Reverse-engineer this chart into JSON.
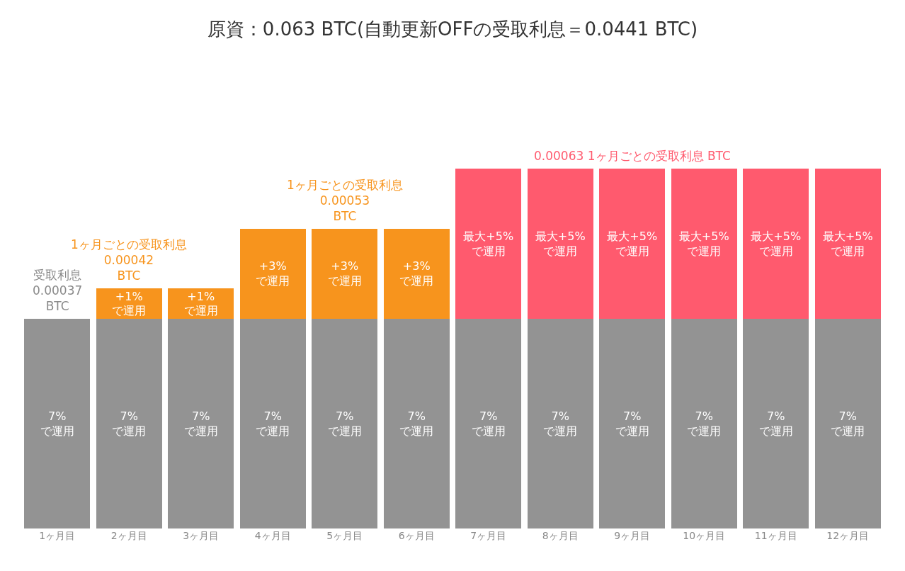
{
  "chart_data": {
    "type": "bar",
    "title": "原資：0.063 BTC(自動更新OFFの受取利息＝0.0441 BTC)",
    "categories": [
      "1ヶ月目",
      "2ヶ月目",
      "3ヶ月目",
      "4ヶ月目",
      "5ヶ月目",
      "6ヶ月目",
      "7ヶ月目",
      "8ヶ月目",
      "9ヶ月目",
      "10ヶ月目",
      "11ヶ月目",
      "12ヶ月目"
    ],
    "stacked": true,
    "legend": false,
    "tick_labels": "x",
    "series": [
      {
        "color": "#939393",
        "values": [
          7,
          7,
          7,
          7,
          7,
          7,
          7,
          7,
          7,
          7,
          7,
          7
        ],
        "value_labels": [
          "7%\nで運用",
          "7%\nで運用",
          "7%\nで運用",
          "7%\nで運用",
          "7%\nで運用",
          "7%\nで運用",
          "7%\nで運用",
          "7%\nで運用",
          "7%\nで運用",
          "7%\nで運用",
          "7%\nで運用",
          "7%\nで運用"
        ]
      },
      {
        "colors": [
          "#939393",
          "#f7941d",
          "#f7941d",
          "#f7941d",
          "#f7941d",
          "#f7941d",
          "#ff5a6e",
          "#ff5a6e",
          "#ff5a6e",
          "#ff5a6e",
          "#ff5a6e",
          "#ff5a6e"
        ],
        "values": [
          null,
          1,
          1,
          3,
          3,
          3,
          5,
          5,
          5,
          5,
          5,
          5
        ],
        "value_labels": [
          null,
          "+1%\nで運用",
          "+1%\nで運用",
          "+3%\nで運用",
          "+3%\nで運用",
          "+3%\nで運用",
          "最大+5%\nで運用",
          "最大+5%\nで運用",
          "最大+5%\nで運用",
          "最大+5%\nで運用",
          "最大+5%\nで運用",
          "最大+5%\nで運用"
        ]
      }
    ],
    "annotations": [
      {
        "text": "受取利息\n0.00037\nBTC",
        "x": "1ヶ月目",
        "y": 7
      },
      {
        "text": "1ヶ月ごとの受取利息\n0.00042\nBTC",
        "x": "2ヶ月目",
        "y": 8
      },
      {
        "text": "1ヶ月ごとの受取利息\n0.00053\nBTC",
        "x": "5ヶ月目",
        "y": 10
      },
      {
        "text": "0.00063 1ヶ月ごとの受取利息 BTC",
        "x": "9ヶ月目",
        "y": 12
      }
    ]
  }
}
